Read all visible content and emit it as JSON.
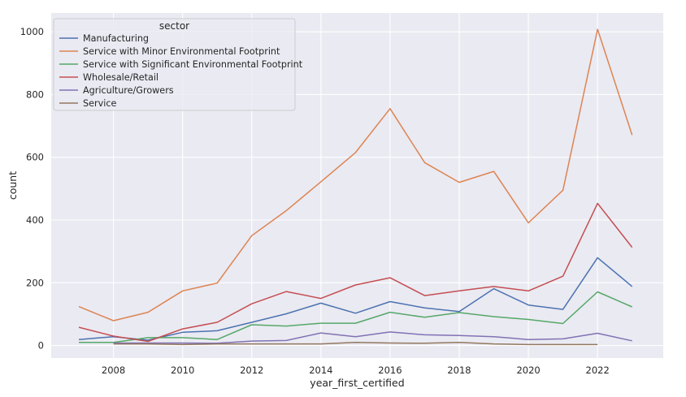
{
  "chart_data": {
    "type": "line",
    "xlabel": "year_first_certified",
    "ylabel": "count",
    "xlim": [
      2006.2,
      2023.9
    ],
    "ylim": [
      -40,
      1060
    ],
    "x_ticks": [
      2008,
      2010,
      2012,
      2014,
      2016,
      2018,
      2020,
      2022
    ],
    "y_ticks": [
      0,
      200,
      400,
      600,
      800,
      1000
    ],
    "grid": true,
    "legend": {
      "title": "sector",
      "placement": "top-left"
    },
    "series": [
      {
        "name": "Manufacturing",
        "color": "#4c72b0",
        "x": [
          2007,
          2008,
          2009,
          2010,
          2011,
          2012,
          2013,
          2014,
          2015,
          2016,
          2017,
          2018,
          2019,
          2020,
          2021,
          2022,
          2023
        ],
        "y": [
          19,
          28,
          17,
          42,
          47,
          74,
          101,
          135,
          103,
          140,
          120,
          108,
          181,
          129,
          115,
          280,
          188
        ]
      },
      {
        "name": "Service with Minor Environmental Footprint",
        "color": "#dd8452",
        "x": [
          2007,
          2008,
          2009,
          2010,
          2011,
          2012,
          2013,
          2014,
          2015,
          2016,
          2017,
          2018,
          2019,
          2020,
          2021,
          2022,
          2023
        ],
        "y": [
          124,
          79,
          106,
          174,
          199,
          350,
          430,
          522,
          615,
          755,
          583,
          520,
          555,
          391,
          495,
          1008,
          671
        ]
      },
      {
        "name": "Service with Significant Environmental Footprint",
        "color": "#55a868",
        "x": [
          2007,
          2008,
          2009,
          2010,
          2011,
          2012,
          2013,
          2014,
          2015,
          2016,
          2017,
          2018,
          2019,
          2020,
          2021,
          2022,
          2023
        ],
        "y": [
          10,
          10,
          25,
          25,
          19,
          66,
          62,
          71,
          71,
          106,
          90,
          105,
          92,
          83,
          70,
          171,
          123
        ]
      },
      {
        "name": "Wholesale/Retail",
        "color": "#c44e52",
        "x": [
          2007,
          2008,
          2009,
          2010,
          2011,
          2012,
          2013,
          2014,
          2015,
          2016,
          2017,
          2018,
          2019,
          2020,
          2021,
          2022,
          2023
        ],
        "y": [
          58,
          30,
          13,
          53,
          74,
          133,
          172,
          150,
          193,
          216,
          159,
          174,
          188,
          174,
          221,
          453,
          313
        ]
      },
      {
        "name": "Agriculture/Growers",
        "color": "#8172b3",
        "x": [
          2008,
          2009,
          2010,
          2011,
          2012,
          2013,
          2014,
          2015,
          2016,
          2017,
          2018,
          2019,
          2020,
          2021,
          2022,
          2023
        ],
        "y": [
          8,
          8,
          8,
          7,
          14,
          16,
          40,
          28,
          43,
          34,
          32,
          28,
          19,
          21,
          39,
          15
        ]
      },
      {
        "name": "Service",
        "color": "#937860",
        "x": [
          2008,
          2009,
          2010,
          2011,
          2012,
          2013,
          2014,
          2015,
          2016,
          2017,
          2018,
          2019,
          2020,
          2021,
          2022
        ],
        "y": [
          5,
          5,
          3,
          5,
          5,
          5,
          5,
          10,
          8,
          7,
          10,
          5,
          3,
          3,
          3
        ]
      }
    ]
  }
}
